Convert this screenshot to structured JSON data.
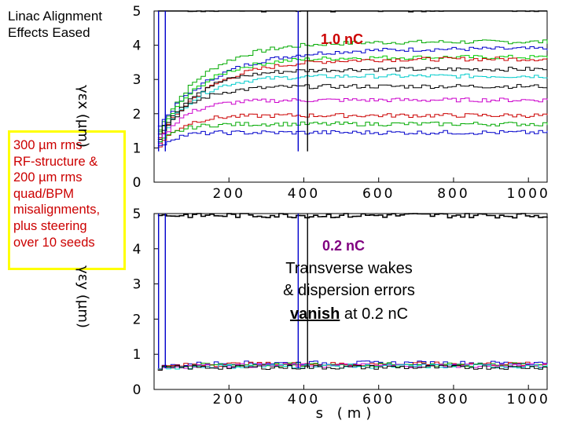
{
  "slide": {
    "title_line1": "Linac Alignment",
    "title_line2": "Effects Eased",
    "callout_lines": [
      "300 µm rms",
      "RF-structure &",
      "200 µm rms",
      "quad/BPM",
      "misalignments,",
      "plus steering",
      "over 10 seeds"
    ],
    "note_line1": "Transverse wakes",
    "note_line2": "& dispersion errors",
    "note_line3_bold": "vanish",
    "note_line3_rest": " at 0.2 nC"
  },
  "chart_data": [
    {
      "type": "line",
      "annotation": "1.0 nC",
      "ylabel": "γεx (µm)",
      "xlabel": "",
      "xlim": [
        0,
        1050
      ],
      "ylim": [
        0,
        5
      ],
      "xticks": [
        "200",
        "400",
        "600",
        "800",
        "1000"
      ],
      "yticks": [
        "0",
        "1",
        "2",
        "3",
        "4",
        "5"
      ],
      "grid": false,
      "series": [
        {
          "color": "#00aa00",
          "final": 4.1,
          "start": 1.3,
          "half": 120
        },
        {
          "color": "#0000cc",
          "final": 3.9,
          "start": 1.5,
          "half": 150
        },
        {
          "color": "#00cc00",
          "final": 3.65,
          "start": 1.2,
          "half": 110
        },
        {
          "color": "#cc0000",
          "final": 3.6,
          "start": 1.1,
          "half": 130
        },
        {
          "color": "#000000",
          "final": 3.3,
          "start": 1.2,
          "half": 100
        },
        {
          "color": "#00cccc",
          "final": 3.1,
          "start": 1.0,
          "half": 90
        },
        {
          "color": "#000000",
          "final": 2.8,
          "start": 1.1,
          "half": 80
        },
        {
          "color": "#cc00cc",
          "final": 2.4,
          "start": 1.0,
          "half": 70
        },
        {
          "color": "#cc0000",
          "final": 1.95,
          "start": 0.9,
          "half": 60
        },
        {
          "color": "#00aa00",
          "final": 1.7,
          "start": 1.0,
          "half": 50
        },
        {
          "color": "#0000cc",
          "final": 1.45,
          "start": 0.9,
          "half": 40
        },
        {
          "color": "#000000",
          "final": 5.05,
          "start": 5.0,
          "half": 10
        }
      ]
    },
    {
      "type": "line",
      "annotation": "0.2 nC",
      "ylabel": "γεy (µm)",
      "xlabel": "s (m)",
      "xlim": [
        0,
        1050
      ],
      "ylim": [
        0,
        5
      ],
      "xticks": [
        "200",
        "400",
        "600",
        "800",
        "1000"
      ],
      "yticks": [
        "0",
        "1",
        "2",
        "3",
        "4",
        "5"
      ],
      "grid": false,
      "series": [
        {
          "color": "#0000cc",
          "final": 0.75,
          "start": 0.6,
          "half": 60
        },
        {
          "color": "#cc0000",
          "final": 0.72,
          "start": 0.6,
          "half": 60
        },
        {
          "color": "#00aa00",
          "final": 0.7,
          "start": 0.6,
          "half": 60
        },
        {
          "color": "#cc00cc",
          "final": 0.68,
          "start": 0.6,
          "half": 60
        },
        {
          "color": "#00cccc",
          "final": 0.66,
          "start": 0.6,
          "half": 60
        },
        {
          "color": "#000000",
          "final": 0.63,
          "start": 0.6,
          "half": 60
        },
        {
          "color": "#000000",
          "final": 4.95,
          "start": 4.9,
          "half": 10
        }
      ]
    }
  ]
}
